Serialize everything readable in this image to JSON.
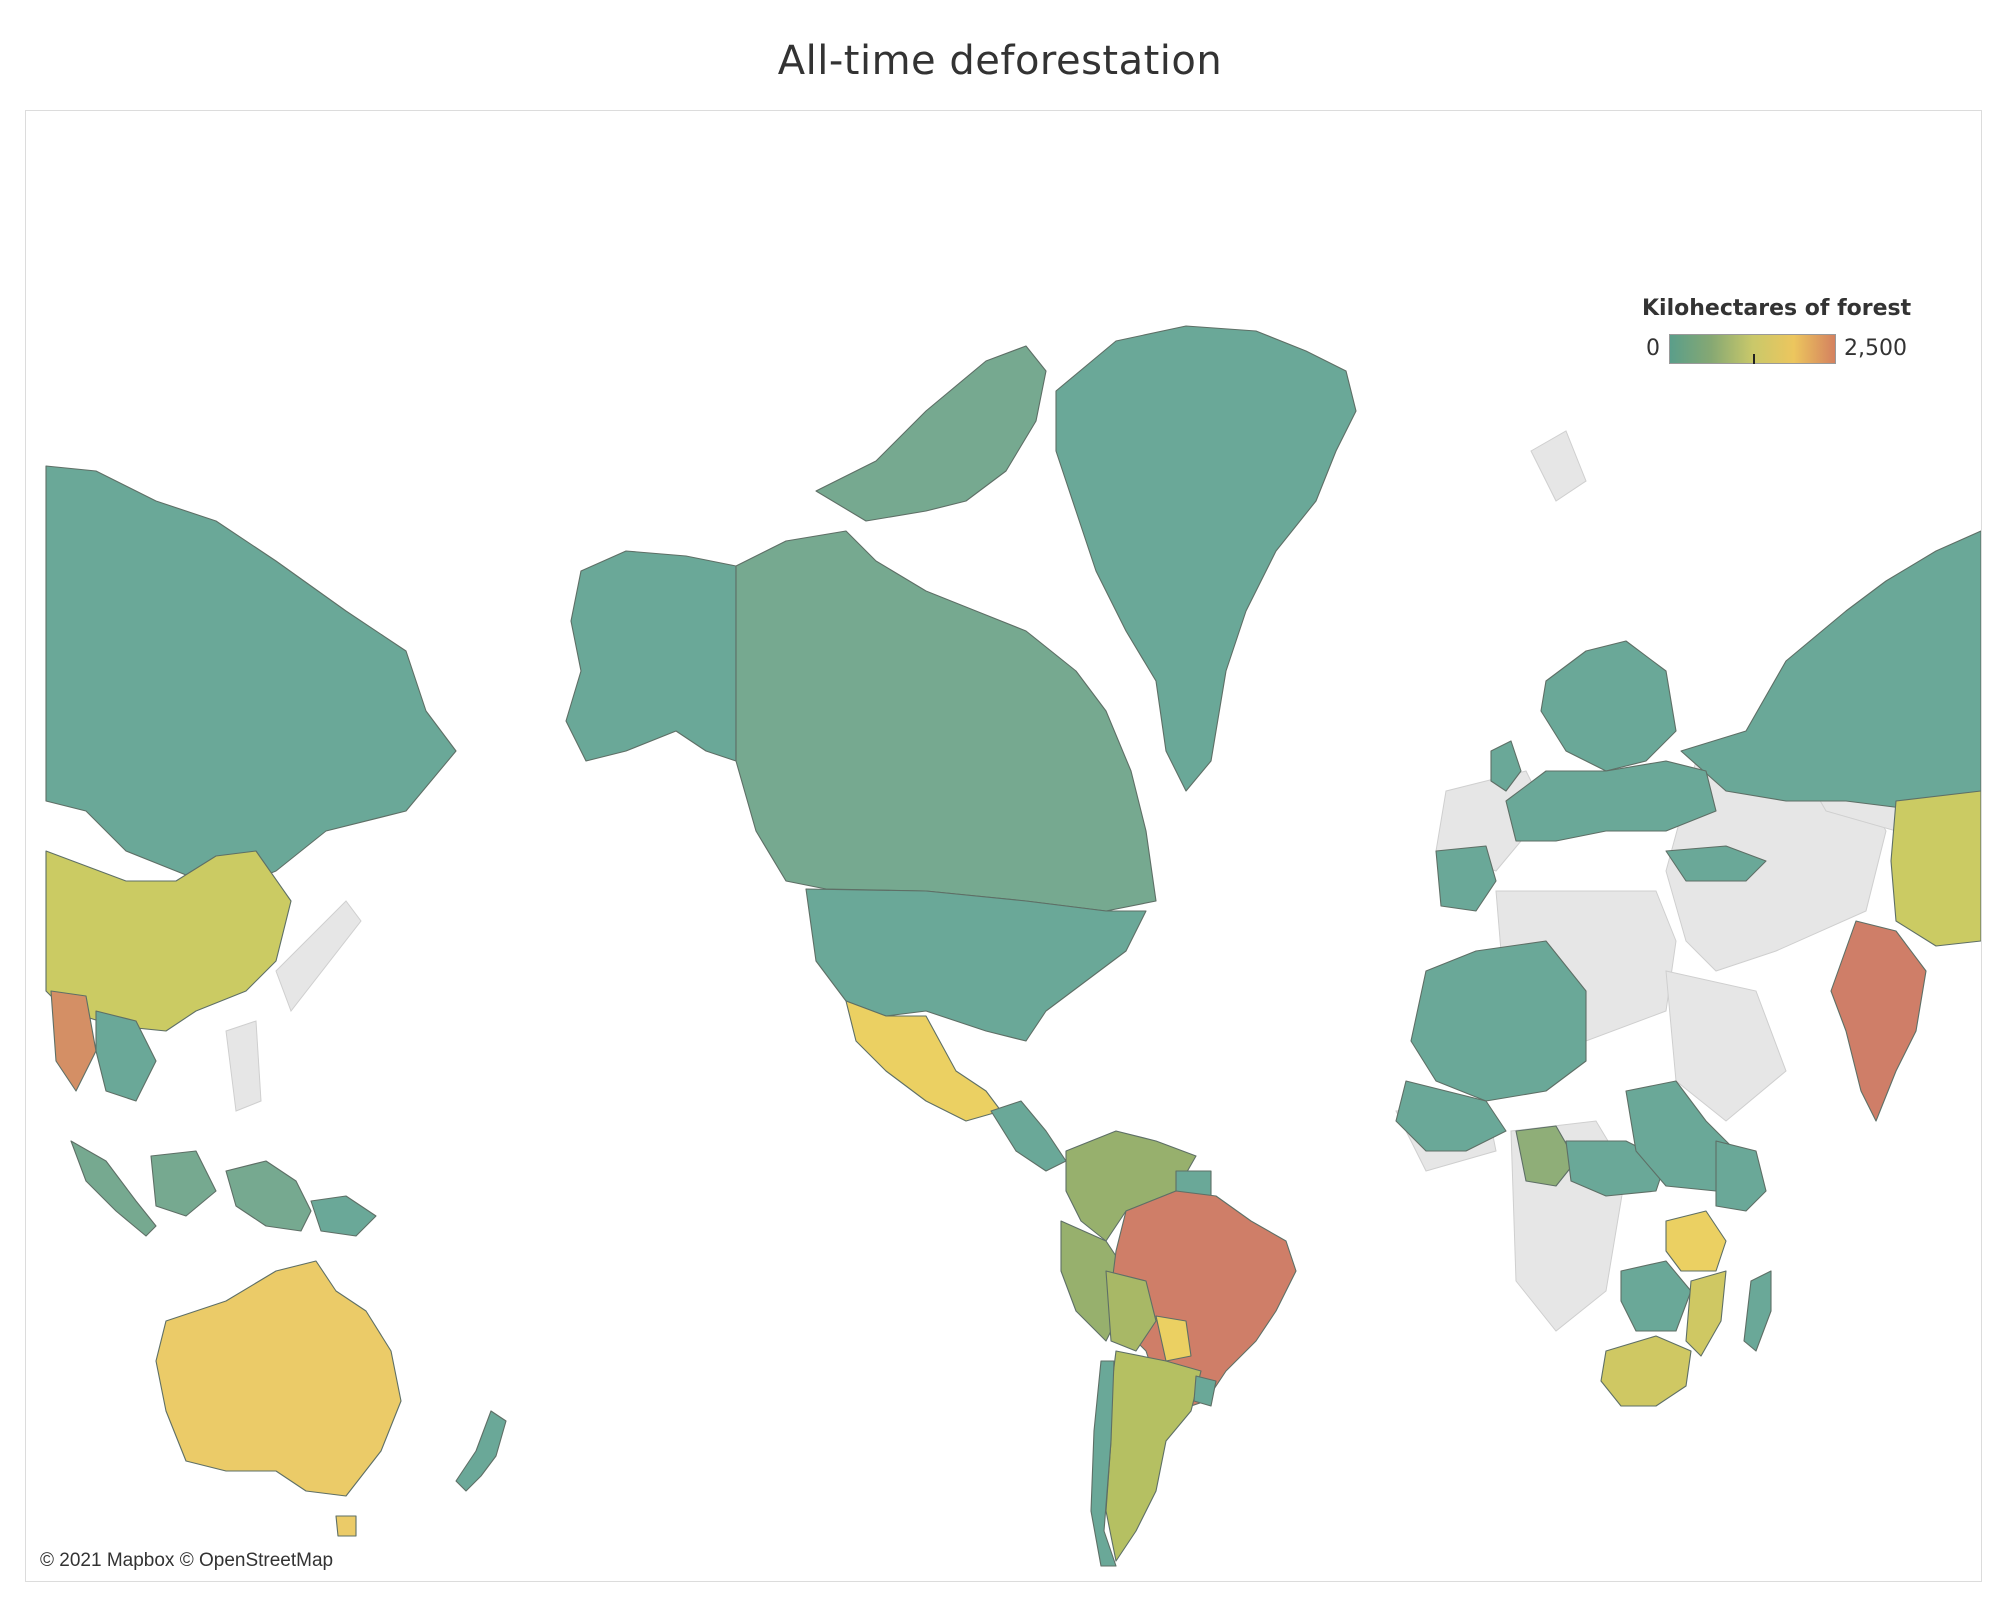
{
  "title": "All-time deforestation",
  "legend": {
    "title": "Kilohectares of forest",
    "min_label": "0",
    "max_label": "2,500",
    "min": 0,
    "max": 2500,
    "gradient": [
      "#5a9e8a",
      "#86a873",
      "#c9c86a",
      "#ecc65e",
      "#d4815f"
    ]
  },
  "attribution": "© 2021 Mapbox © OpenStreetMap",
  "colors": {
    "ocean": "#ffffff",
    "no_data": "#e6e6e6",
    "low": "#6aa898",
    "mid": "#cbcb63",
    "high": "#cf7e68"
  },
  "map_data": {
    "type": "choropleth",
    "projection": "web-mercator",
    "regions": [
      {
        "name": "Russia",
        "color": "#6aa898"
      },
      {
        "name": "Canada",
        "color": "#76a990"
      },
      {
        "name": "Greenland",
        "color": "#6aa898"
      },
      {
        "name": "Alaska / United States",
        "color": "#6aa898"
      },
      {
        "name": "China",
        "color": "#cbcb63"
      },
      {
        "name": "Mexico",
        "color": "#ebd062"
      },
      {
        "name": "Brazil",
        "color": "#cf7e68"
      },
      {
        "name": "Indonesia",
        "color": "#cf7e68"
      },
      {
        "name": "India",
        "color": "#d48f65"
      },
      {
        "name": "Myanmar",
        "color": "#cf7e68"
      },
      {
        "name": "Australia",
        "color": "#ebcb68"
      },
      {
        "name": "Argentina",
        "color": "#b5c062"
      },
      {
        "name": "Paraguay",
        "color": "#ebd062"
      },
      {
        "name": "Tanzania",
        "color": "#ebd062"
      },
      {
        "name": "South Africa",
        "color": "#cfc863"
      },
      {
        "name": "Nigeria",
        "color": "#8fae78"
      },
      {
        "name": "Colombia / Venezuela / Peru",
        "color": "#97b06d"
      },
      {
        "name": "Bolivia",
        "color": "#a8b866"
      },
      {
        "name": "Europe",
        "color": "#6aa898"
      },
      {
        "name": "Papua New Guinea",
        "color": "#6aa898"
      },
      {
        "name": "New Zealand",
        "color": "#6aa898"
      },
      {
        "name": "Madagascar",
        "color": "#6aa898"
      }
    ]
  }
}
